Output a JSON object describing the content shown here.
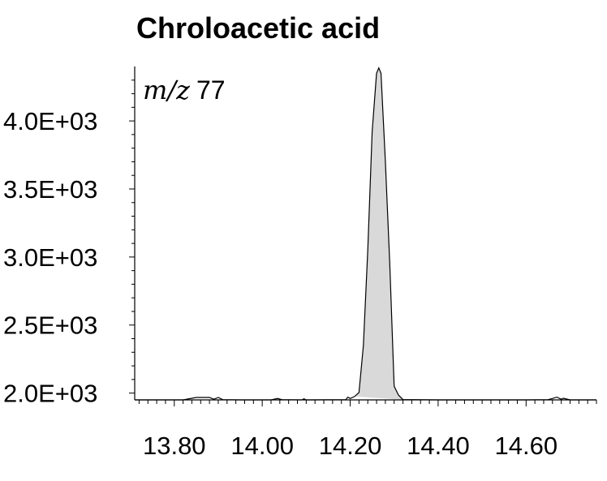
{
  "chart_data": {
    "type": "area",
    "title": "Chroloacetic acid",
    "annotation": {
      "mz_prefix": "m/z",
      "mz_value": "77"
    },
    "xlabel": "",
    "ylabel": "",
    "xlim": [
      13.71,
      14.76
    ],
    "ylim": [
      1950,
      4400
    ],
    "x_ticks": [
      13.8,
      14.0,
      14.2,
      14.4,
      14.6
    ],
    "x_tick_labels": [
      "13.80",
      "14.00",
      "14.20",
      "14.40",
      "14.60"
    ],
    "y_ticks": [
      2000,
      2500,
      3000,
      3500,
      4000
    ],
    "y_tick_labels": [
      "2.0E+03",
      "2.5E+03",
      "3.0E+03",
      "3.5E+03",
      "4.0E+03"
    ],
    "grid": false,
    "fill_color": "#d9d9d9",
    "line_color": "#000000",
    "series": [
      {
        "x": [
          13.71,
          13.82,
          13.85,
          13.865,
          13.88,
          13.89,
          13.9,
          13.91,
          13.95,
          14.02,
          14.035,
          14.045,
          14.09,
          14.095,
          14.1,
          14.19,
          14.195,
          14.2,
          14.21,
          14.22,
          14.23,
          14.24,
          14.25,
          14.26,
          14.265,
          14.27,
          14.28,
          14.29,
          14.3,
          14.31,
          14.32,
          14.4,
          14.5,
          14.6,
          14.65,
          14.66,
          14.67,
          14.68,
          14.685,
          14.7,
          14.76
        ],
        "y": [
          1950,
          1950,
          1968,
          1968,
          1968,
          1955,
          1968,
          1952,
          1950,
          1950,
          1960,
          1952,
          1950,
          1958,
          1950,
          1952,
          1970,
          1960,
          1975,
          2005,
          2350,
          3050,
          3920,
          4350,
          4390,
          4350,
          3700,
          2950,
          2050,
          1985,
          1952,
          1950,
          1950,
          1950,
          1952,
          1960,
          1970,
          1955,
          1962,
          1950,
          1950
        ],
        "peak_start": 14.21,
        "peak_end": 14.32
      }
    ]
  }
}
